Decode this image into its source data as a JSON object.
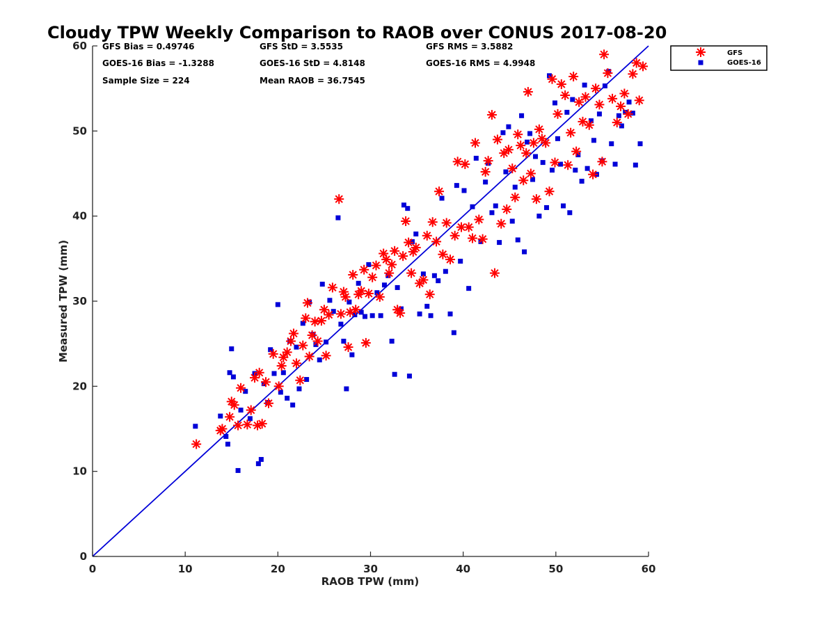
{
  "chart_data": {
    "type": "scatter",
    "title": "Cloudy TPW Weekly Comparison to RAOB over CONUS 2017-08-20",
    "xlabel": "RAOB TPW (mm)",
    "ylabel": "Measured TPW (mm)",
    "xlim": [
      0,
      60
    ],
    "ylim": [
      0,
      60
    ],
    "xticks": [
      "0",
      "10",
      "20",
      "30",
      "40",
      "50",
      "60"
    ],
    "yticks": [
      "0",
      "10",
      "20",
      "30",
      "40",
      "50",
      "60"
    ],
    "grid": false,
    "legend_position": "top-right, outside plot",
    "reference_line": {
      "x": [
        0,
        60
      ],
      "y": [
        0,
        60
      ],
      "color": "#0000d8"
    },
    "stats": [
      {
        "label": "GFS Bias = 0.49746"
      },
      {
        "label": "GFS StD = 3.5535"
      },
      {
        "label": "GFS RMS = 3.5882"
      },
      {
        "label": "GOES-16 Bias = -1.3288"
      },
      {
        "label": "GOES-16 StD = 4.8148"
      },
      {
        "label": "GOES-16 RMS = 4.9948"
      },
      {
        "label": "Sample Size = 224"
      },
      {
        "label": "Mean RAOB = 36.7545"
      }
    ],
    "series": [
      {
        "name": "GFS",
        "marker": "asterisk",
        "color": "#ff0000",
        "points": [
          [
            11.2,
            13.2
          ],
          [
            13.8,
            14.8
          ],
          [
            14.0,
            15.0
          ],
          [
            14.8,
            16.4
          ],
          [
            15.0,
            18.2
          ],
          [
            15.3,
            17.8
          ],
          [
            15.7,
            15.4
          ],
          [
            16.0,
            19.8
          ],
          [
            16.7,
            15.5
          ],
          [
            17.1,
            17.2
          ],
          [
            17.5,
            21.0
          ],
          [
            17.8,
            15.4
          ],
          [
            18.0,
            21.6
          ],
          [
            18.3,
            15.6
          ],
          [
            18.7,
            20.5
          ],
          [
            19.0,
            18.0
          ],
          [
            19.5,
            23.8
          ],
          [
            20.1,
            20.0
          ],
          [
            20.4,
            22.4
          ],
          [
            20.6,
            23.4
          ],
          [
            21.0,
            24.0
          ],
          [
            21.4,
            25.3
          ],
          [
            21.7,
            26.2
          ],
          [
            22.0,
            22.7
          ],
          [
            22.4,
            20.7
          ],
          [
            22.7,
            24.8
          ],
          [
            23.0,
            28.0
          ],
          [
            23.2,
            29.8
          ],
          [
            23.4,
            23.5
          ],
          [
            23.7,
            26.0
          ],
          [
            24.0,
            27.6
          ],
          [
            24.3,
            25.3
          ],
          [
            24.7,
            27.7
          ],
          [
            25.0,
            29.0
          ],
          [
            25.2,
            23.6
          ],
          [
            25.5,
            28.4
          ],
          [
            25.9,
            31.6
          ],
          [
            26.6,
            42.0
          ],
          [
            26.8,
            28.5
          ],
          [
            27.1,
            31.1
          ],
          [
            27.3,
            30.5
          ],
          [
            27.6,
            24.6
          ],
          [
            27.8,
            28.7
          ],
          [
            28.1,
            33.1
          ],
          [
            28.4,
            29.0
          ],
          [
            28.7,
            30.8
          ],
          [
            29.0,
            31.2
          ],
          [
            29.3,
            33.7
          ],
          [
            29.5,
            25.1
          ],
          [
            29.8,
            30.9
          ],
          [
            30.2,
            32.8
          ],
          [
            30.6,
            34.2
          ],
          [
            31.0,
            30.5
          ],
          [
            31.4,
            35.6
          ],
          [
            31.7,
            34.9
          ],
          [
            32.0,
            33.3
          ],
          [
            32.3,
            34.3
          ],
          [
            32.6,
            35.9
          ],
          [
            32.9,
            29.0
          ],
          [
            33.2,
            28.6
          ],
          [
            33.5,
            35.3
          ],
          [
            33.8,
            39.4
          ],
          [
            34.1,
            36.9
          ],
          [
            34.4,
            33.3
          ],
          [
            34.6,
            35.8
          ],
          [
            34.9,
            36.3
          ],
          [
            35.3,
            32.1
          ],
          [
            35.7,
            32.5
          ],
          [
            36.1,
            37.7
          ],
          [
            36.4,
            30.8
          ],
          [
            36.7,
            39.3
          ],
          [
            37.1,
            37.0
          ],
          [
            37.4,
            42.9
          ],
          [
            37.8,
            35.5
          ],
          [
            38.2,
            39.2
          ],
          [
            38.6,
            34.9
          ],
          [
            39.1,
            37.7
          ],
          [
            39.4,
            46.4
          ],
          [
            39.8,
            38.7
          ],
          [
            40.2,
            46.1
          ],
          [
            40.6,
            38.7
          ],
          [
            41.0,
            37.4
          ],
          [
            41.3,
            48.6
          ],
          [
            41.7,
            39.6
          ],
          [
            42.1,
            37.3
          ],
          [
            42.4,
            45.2
          ],
          [
            42.7,
            46.5
          ],
          [
            43.1,
            51.9
          ],
          [
            43.4,
            33.3
          ],
          [
            43.7,
            49.0
          ],
          [
            44.1,
            39.1
          ],
          [
            44.4,
            47.4
          ],
          [
            44.7,
            40.8
          ],
          [
            44.9,
            47.8
          ],
          [
            45.3,
            45.6
          ],
          [
            45.6,
            42.2
          ],
          [
            45.9,
            49.6
          ],
          [
            46.2,
            48.3
          ],
          [
            46.5,
            44.2
          ],
          [
            46.8,
            47.4
          ],
          [
            47.0,
            54.6
          ],
          [
            47.3,
            45.0
          ],
          [
            47.6,
            48.6
          ],
          [
            47.9,
            42.0
          ],
          [
            48.2,
            50.2
          ],
          [
            48.5,
            49.1
          ],
          [
            48.9,
            48.6
          ],
          [
            49.3,
            42.9
          ],
          [
            49.6,
            56.1
          ],
          [
            49.9,
            46.3
          ],
          [
            50.2,
            52.0
          ],
          [
            50.6,
            55.5
          ],
          [
            51.0,
            54.2
          ],
          [
            51.3,
            46.0
          ],
          [
            51.6,
            49.8
          ],
          [
            51.9,
            56.4
          ],
          [
            52.2,
            47.6
          ],
          [
            52.5,
            53.4
          ],
          [
            52.9,
            51.1
          ],
          [
            53.2,
            54.0
          ],
          [
            53.6,
            50.7
          ],
          [
            54.0,
            44.9
          ],
          [
            54.3,
            55.0
          ],
          [
            54.7,
            53.1
          ],
          [
            55.0,
            46.4
          ],
          [
            55.2,
            59.0
          ],
          [
            55.6,
            56.8
          ],
          [
            56.1,
            53.8
          ],
          [
            56.6,
            51.0
          ],
          [
            57.0,
            52.9
          ],
          [
            57.4,
            54.4
          ],
          [
            57.8,
            52.0
          ],
          [
            58.3,
            56.7
          ],
          [
            58.7,
            58.0
          ],
          [
            59.0,
            53.6
          ],
          [
            59.4,
            57.6
          ]
        ]
      },
      {
        "name": "GOES-16",
        "marker": "square",
        "color": "#0000d8",
        "points": [
          [
            11.1,
            15.3
          ],
          [
            13.8,
            16.5
          ],
          [
            14.4,
            14.1
          ],
          [
            14.6,
            13.2
          ],
          [
            14.8,
            21.6
          ],
          [
            15.0,
            24.4
          ],
          [
            15.2,
            21.1
          ],
          [
            15.7,
            10.1
          ],
          [
            16.0,
            17.2
          ],
          [
            16.5,
            19.4
          ],
          [
            17.0,
            16.2
          ],
          [
            17.5,
            21.5
          ],
          [
            17.9,
            10.9
          ],
          [
            18.2,
            11.4
          ],
          [
            18.5,
            20.3
          ],
          [
            18.9,
            18.1
          ],
          [
            19.2,
            24.3
          ],
          [
            19.6,
            21.5
          ],
          [
            20.0,
            29.6
          ],
          [
            20.3,
            19.3
          ],
          [
            20.6,
            21.6
          ],
          [
            21.0,
            18.6
          ],
          [
            21.3,
            25.3
          ],
          [
            21.6,
            17.8
          ],
          [
            22.0,
            24.6
          ],
          [
            22.3,
            19.7
          ],
          [
            22.7,
            27.4
          ],
          [
            23.1,
            20.8
          ],
          [
            23.4,
            29.9
          ],
          [
            23.8,
            26.1
          ],
          [
            24.1,
            24.9
          ],
          [
            24.5,
            23.1
          ],
          [
            24.8,
            32.0
          ],
          [
            25.2,
            25.2
          ],
          [
            25.6,
            30.1
          ],
          [
            26.0,
            28.8
          ],
          [
            26.5,
            39.8
          ],
          [
            26.8,
            27.3
          ],
          [
            27.1,
            25.3
          ],
          [
            27.4,
            19.7
          ],
          [
            27.7,
            29.9
          ],
          [
            28.0,
            23.7
          ],
          [
            28.3,
            28.4
          ],
          [
            28.7,
            32.1
          ],
          [
            29.0,
            28.7
          ],
          [
            29.4,
            28.2
          ],
          [
            29.8,
            34.3
          ],
          [
            30.2,
            28.3
          ],
          [
            30.7,
            31.0
          ],
          [
            31.1,
            28.3
          ],
          [
            31.5,
            31.9
          ],
          [
            31.9,
            33.0
          ],
          [
            32.3,
            25.3
          ],
          [
            32.6,
            21.4
          ],
          [
            32.9,
            31.6
          ],
          [
            33.3,
            29.1
          ],
          [
            33.6,
            41.3
          ],
          [
            34.0,
            40.9
          ],
          [
            34.2,
            21.2
          ],
          [
            34.5,
            37.0
          ],
          [
            34.9,
            37.9
          ],
          [
            35.3,
            28.5
          ],
          [
            35.7,
            33.2
          ],
          [
            36.1,
            29.4
          ],
          [
            36.5,
            28.3
          ],
          [
            36.9,
            33.0
          ],
          [
            37.3,
            32.4
          ],
          [
            37.7,
            42.1
          ],
          [
            38.1,
            33.5
          ],
          [
            38.6,
            28.5
          ],
          [
            39.0,
            26.3
          ],
          [
            39.3,
            43.6
          ],
          [
            39.7,
            34.7
          ],
          [
            40.1,
            43.0
          ],
          [
            40.6,
            31.5
          ],
          [
            41.0,
            41.1
          ],
          [
            41.4,
            46.8
          ],
          [
            41.9,
            37.0
          ],
          [
            42.4,
            44.0
          ],
          [
            42.7,
            46.2
          ],
          [
            43.1,
            40.4
          ],
          [
            43.5,
            41.2
          ],
          [
            43.9,
            36.9
          ],
          [
            44.3,
            49.8
          ],
          [
            44.6,
            45.2
          ],
          [
            44.9,
            50.5
          ],
          [
            45.3,
            39.4
          ],
          [
            45.6,
            43.4
          ],
          [
            45.9,
            37.2
          ],
          [
            46.3,
            51.8
          ],
          [
            46.6,
            35.8
          ],
          [
            46.9,
            48.7
          ],
          [
            47.2,
            49.7
          ],
          [
            47.5,
            44.3
          ],
          [
            47.8,
            47.0
          ],
          [
            48.2,
            40.0
          ],
          [
            48.6,
            46.3
          ],
          [
            49.0,
            41.0
          ],
          [
            49.3,
            56.5
          ],
          [
            49.6,
            45.4
          ],
          [
            49.9,
            53.3
          ],
          [
            50.2,
            49.1
          ],
          [
            50.5,
            46.1
          ],
          [
            50.8,
            41.2
          ],
          [
            51.2,
            52.2
          ],
          [
            51.5,
            40.4
          ],
          [
            51.8,
            53.7
          ],
          [
            52.1,
            45.4
          ],
          [
            52.4,
            47.2
          ],
          [
            52.8,
            44.1
          ],
          [
            53.1,
            55.4
          ],
          [
            53.4,
            45.6
          ],
          [
            53.8,
            51.2
          ],
          [
            54.1,
            48.9
          ],
          [
            54.4,
            44.9
          ],
          [
            54.7,
            52.0
          ],
          [
            55.0,
            46.5
          ],
          [
            55.3,
            55.3
          ],
          [
            55.7,
            57.0
          ],
          [
            56.0,
            48.5
          ],
          [
            56.4,
            46.1
          ],
          [
            56.8,
            51.8
          ],
          [
            57.1,
            50.6
          ],
          [
            57.5,
            52.2
          ],
          [
            57.9,
            53.4
          ],
          [
            58.3,
            52.1
          ],
          [
            58.6,
            46.0
          ],
          [
            59.1,
            48.5
          ]
        ]
      }
    ]
  }
}
